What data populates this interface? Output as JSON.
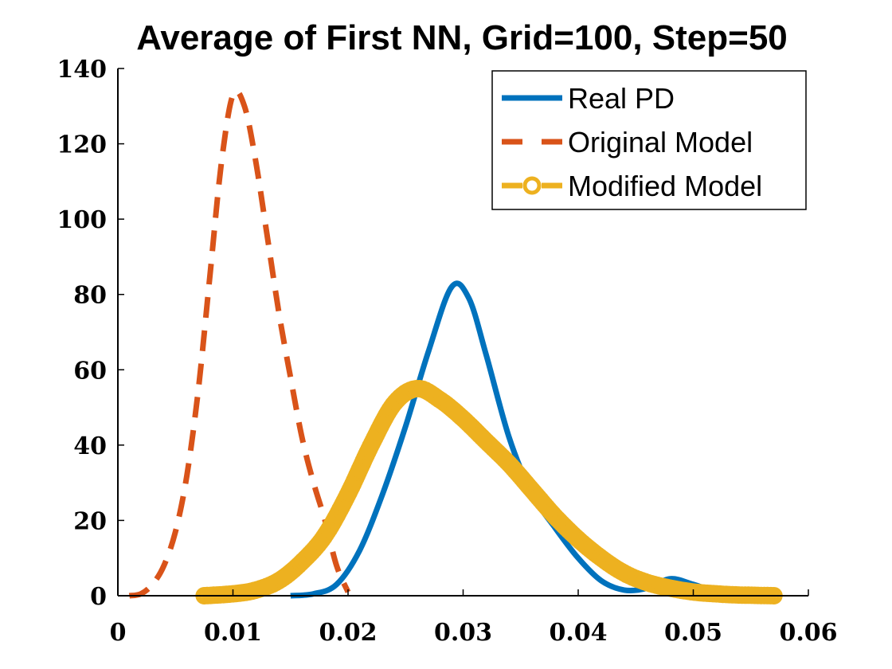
{
  "chart_data": {
    "type": "line",
    "title": "Average of First NN, Grid=100, Step=50",
    "xlabel": "",
    "ylabel": "",
    "xlim": [
      0,
      0.06
    ],
    "ylim": [
      0,
      140
    ],
    "x_ticks": [
      "0",
      "0.01",
      "0.02",
      "0.03",
      "0.04",
      "0.05",
      "0.06"
    ],
    "y_ticks": [
      "0",
      "20",
      "40",
      "60",
      "80",
      "100",
      "120",
      "140"
    ],
    "grid": false,
    "legend_position": "top-right",
    "series": [
      {
        "name": "Real PD",
        "color": "#0072BD",
        "style": "solid",
        "points": [
          [
            0.015,
            0
          ],
          [
            0.017,
            0.5
          ],
          [
            0.019,
            3
          ],
          [
            0.021,
            12
          ],
          [
            0.023,
            27
          ],
          [
            0.025,
            45
          ],
          [
            0.027,
            65
          ],
          [
            0.029,
            82
          ],
          [
            0.0305,
            79
          ],
          [
            0.032,
            64
          ],
          [
            0.034,
            42
          ],
          [
            0.036,
            27
          ],
          [
            0.038,
            18
          ],
          [
            0.04,
            10
          ],
          [
            0.042,
            4
          ],
          [
            0.044,
            1.5
          ],
          [
            0.046,
            2
          ],
          [
            0.048,
            4.5
          ],
          [
            0.05,
            3
          ],
          [
            0.052,
            1
          ],
          [
            0.054,
            0.3
          ],
          [
            0.057,
            0
          ]
        ]
      },
      {
        "name": "Original Model",
        "color": "#D95319",
        "style": "dashed",
        "points": [
          [
            0.001,
            0
          ],
          [
            0.002,
            0.5
          ],
          [
            0.003,
            3
          ],
          [
            0.004,
            8
          ],
          [
            0.005,
            17
          ],
          [
            0.006,
            32
          ],
          [
            0.007,
            55
          ],
          [
            0.008,
            85
          ],
          [
            0.009,
            115
          ],
          [
            0.01,
            133
          ],
          [
            0.011,
            130
          ],
          [
            0.012,
            115
          ],
          [
            0.013,
            95
          ],
          [
            0.014,
            75
          ],
          [
            0.015,
            58
          ],
          [
            0.016,
            42
          ],
          [
            0.017,
            30
          ],
          [
            0.018,
            20
          ],
          [
            0.019,
            8
          ],
          [
            0.02,
            1
          ]
        ]
      },
      {
        "name": "Modified Model",
        "color": "#EDB120",
        "style": "dashed-circle",
        "points": [
          [
            0.0075,
            0
          ],
          [
            0.01,
            0.5
          ],
          [
            0.012,
            1.5
          ],
          [
            0.014,
            4
          ],
          [
            0.016,
            9
          ],
          [
            0.018,
            16
          ],
          [
            0.02,
            27
          ],
          [
            0.022,
            40
          ],
          [
            0.024,
            51
          ],
          [
            0.026,
            55
          ],
          [
            0.028,
            52
          ],
          [
            0.03,
            47
          ],
          [
            0.032,
            41
          ],
          [
            0.034,
            35
          ],
          [
            0.036,
            28
          ],
          [
            0.038,
            21
          ],
          [
            0.04,
            15
          ],
          [
            0.042,
            10
          ],
          [
            0.044,
            6
          ],
          [
            0.046,
            3.5
          ],
          [
            0.048,
            2
          ],
          [
            0.05,
            1
          ],
          [
            0.052,
            0.5
          ],
          [
            0.054,
            0.2
          ],
          [
            0.057,
            0
          ]
        ]
      }
    ]
  }
}
